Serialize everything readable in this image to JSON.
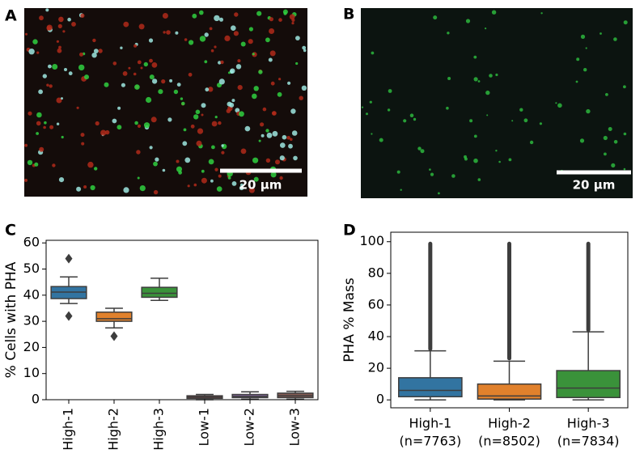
{
  "images": [
    {
      "label": "A",
      "scale_bar": "20 µm"
    },
    {
      "label": "B",
      "scale_bar": "20 µm"
    }
  ],
  "chart_data": [
    {
      "type": "box",
      "panel": "C",
      "ylabel": "% Cells with PHA",
      "categories": [
        "High-1",
        "High-2",
        "High-3",
        "Low-1",
        "Low-2",
        "Low-3"
      ],
      "colors": [
        "#3274a1",
        "#e1812c",
        "#3a923a",
        "#c03d3e",
        "#9372b2",
        "#845b53"
      ],
      "boxes": [
        {
          "whisker_low": 36.8,
          "q1": 38.7,
          "median": 41.2,
          "q3": 43.3,
          "whisker_high": 47,
          "outliers": [
            54,
            32
          ]
        },
        {
          "whisker_low": 27.5,
          "q1": 30,
          "median": 31,
          "q3": 33.5,
          "whisker_high": 35,
          "outliers": [
            24.3
          ]
        },
        {
          "whisker_low": 38,
          "q1": 39.2,
          "median": 40.7,
          "q3": 43,
          "whisker_high": 46.5,
          "outliers": []
        },
        {
          "whisker_low": 0,
          "q1": 0.5,
          "median": 1,
          "q3": 1.5,
          "whisker_high": 2,
          "outliers": []
        },
        {
          "whisker_low": 0.2,
          "q1": 0.8,
          "median": 1.3,
          "q3": 2,
          "whisker_high": 3,
          "outliers": []
        },
        {
          "whisker_low": 0.2,
          "q1": 0.8,
          "median": 1.5,
          "q3": 2.5,
          "whisker_high": 3.2,
          "outliers": []
        }
      ],
      "ylim": [
        0,
        61
      ],
      "yticks": [
        0,
        10,
        20,
        30,
        40,
        50,
        60
      ]
    },
    {
      "type": "box",
      "panel": "D",
      "ylabel": "PHA % Mass",
      "categories": [
        "High-1",
        "High-2",
        "High-3"
      ],
      "sublabels": [
        "(n=7763)",
        "(n=8502)",
        "(n=7834)"
      ],
      "colors": [
        "#3274a1",
        "#e1812c",
        "#3a923a"
      ],
      "boxes": [
        {
          "whisker_low": 0,
          "q1": 2,
          "median": 6,
          "q3": 14,
          "whisker_high": 31,
          "outlier_range": [
            31,
            100
          ]
        },
        {
          "whisker_low": 0,
          "q1": 0.5,
          "median": 2.5,
          "q3": 10,
          "whisker_high": 24.5,
          "outlier_range": [
            25,
            100
          ]
        },
        {
          "whisker_low": 0,
          "q1": 1.5,
          "median": 7.5,
          "q3": 18.5,
          "whisker_high": 43,
          "outlier_range": [
            43,
            100
          ]
        }
      ],
      "ylim": [
        -5,
        106
      ],
      "yticks": [
        0,
        20,
        40,
        60,
        80,
        100
      ]
    }
  ]
}
